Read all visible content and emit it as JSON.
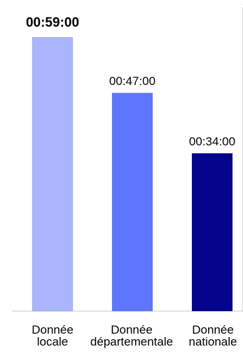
{
  "chart_data": {
    "type": "bar",
    "categories": [
      {
        "line1": "Donnée",
        "line2": "locale"
      },
      {
        "line1": "Donnée",
        "line2": "départementale"
      },
      {
        "line1": "Donnée",
        "line2": "nationale"
      }
    ],
    "values": [
      59,
      47,
      34
    ],
    "value_unit": "minutes",
    "data_labels": [
      "00:59:00",
      "00:47:00",
      "00:34:00"
    ],
    "highlighted_index": 0,
    "bar_colors": [
      "#A9B5FD",
      "#5E76FB",
      "#04048C"
    ],
    "ylim": [
      0,
      70
    ],
    "title": "",
    "xlabel": "",
    "ylabel": "",
    "grid": false,
    "legend": "none"
  }
}
